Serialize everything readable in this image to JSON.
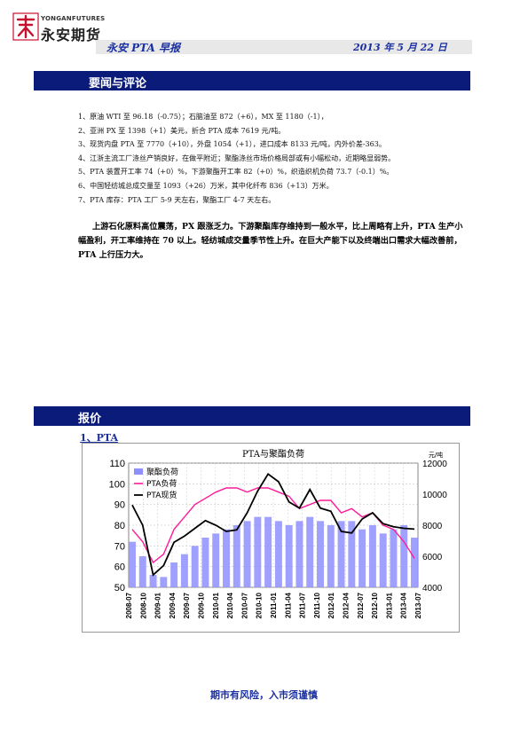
{
  "header": {
    "logo_en": "YONGANFUTURES",
    "logo_cn": "永安期货",
    "report_name": "永安 PTA 早报",
    "date": "2013 年 5 月 22 日"
  },
  "section_news": {
    "title": "要闻与评论",
    "items": [
      "1、原油 WTI 至 96.18（-0.75）；石脑油至 872（+6），MX 至 1180（-1），",
      "2、亚洲 PX 至 1398（+1）美元，折合 PTA 成本 7619 元/吨。",
      "3、现货内盘 PTA 至 7770（+10），外盘 1054（+1），进口成本 8133 元/吨，内外价差-363。",
      "4、江浙主流工厂涤丝产销良好，在做平附近；聚酯涤丝市场价格局部或有小幅松动，近期略显弱势。",
      "5、PTA 装置开工率 74（+0）%，下游聚酯开工率 82（+0）%，织造织机负荷 73.7（-0.1）%。",
      "6、中国轻纺城总成交量至 1093（+26）万米，其中化纤布 836（+13）万米。",
      "7、PTA 库存：PTA 工厂 5-9 天左右，聚酯工厂 4-7 天左右。"
    ],
    "comment": "上游石化原料高位震荡，PX 跟涨乏力。下游聚酯库存维持到一般水平，比上周略有上升，PTA 生产小幅盈利，开工率维持在 70 以上。轻纺城成交量季节性上升。在巨大产能下以及终端出口需求大幅改善前，PTA 上行压力大。"
  },
  "section_price": {
    "title": "报价",
    "subtitle": "1、PTA"
  },
  "chart_data": {
    "type": "line",
    "title": "PTA与聚酯负荷",
    "y2_unit": "元/吨",
    "ylim": [
      50,
      110
    ],
    "y_ticks": [
      50,
      60,
      70,
      80,
      90,
      100,
      110
    ],
    "y2lim": [
      4000,
      12000
    ],
    "y2_ticks": [
      4000,
      6000,
      8000,
      10000,
      12000
    ],
    "x_ticks": [
      "2008-07",
      "2008-10",
      "2009-01",
      "2009-04",
      "2009-07",
      "2009-10",
      "2010-01",
      "2010-04",
      "2010-07",
      "2010-10",
      "2011-01",
      "2011-04",
      "2011-07",
      "2011-10",
      "2012-01",
      "2012-04",
      "2012-07",
      "2012-10",
      "2013-01",
      "2013-04",
      "2013-07"
    ],
    "grid": true,
    "legend": "top-left",
    "series": [
      {
        "name": "聚酯负荷",
        "kind": "bar",
        "axis": "left",
        "color": "#8f8fff",
        "values": [
          72,
          65,
          56,
          55,
          62,
          66,
          70,
          74,
          76,
          78,
          80,
          82,
          84,
          84,
          82,
          80,
          82,
          84,
          82,
          80,
          82,
          82,
          78,
          80,
          76,
          78,
          80,
          74
        ]
      },
      {
        "name": "PTA负荷",
        "kind": "line",
        "axis": "left",
        "color": "#ff1a9a",
        "values": [
          78,
          72,
          62,
          66,
          78,
          84,
          90,
          93,
          96,
          98,
          98,
          96,
          98,
          98,
          96,
          94,
          88,
          90,
          92,
          92,
          86,
          88,
          84,
          86,
          80,
          78,
          72,
          64
        ]
      },
      {
        "name": "PTA现货",
        "kind": "line",
        "axis": "right",
        "color": "#000000",
        "values": [
          9300,
          8000,
          4800,
          5400,
          6900,
          7300,
          7800,
          8300,
          8000,
          7600,
          7700,
          8800,
          10200,
          11300,
          10800,
          9500,
          9100,
          10300,
          9100,
          8900,
          7600,
          7500,
          8400,
          8800,
          8100,
          7900,
          7800,
          7750
        ]
      }
    ]
  },
  "footer": {
    "text": "期市有风险，入市须谨慎"
  }
}
